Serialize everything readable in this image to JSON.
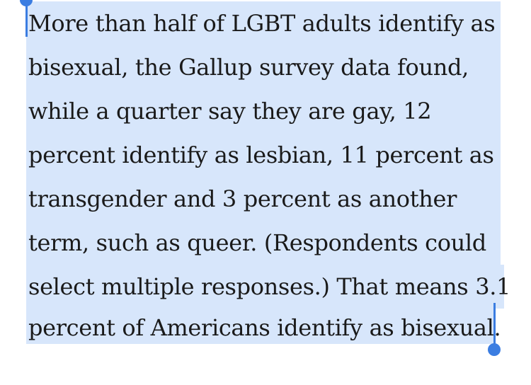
{
  "selection": {
    "color": "#d7e6fb",
    "handle_color": "#3b7de1"
  },
  "paragraph": {
    "lines": [
      "More than half of LGBT adults identify as",
      "bisexual, the Gallup survey data found,",
      "while a quarter say they are gay, 12",
      "percent identify as lesbian, 11 percent as",
      "transgender and 3 percent as another",
      "term, such as queer. (Respondents could",
      "select multiple responses.) That means 3.1",
      "percent of Americans identify as bisexual."
    ]
  }
}
